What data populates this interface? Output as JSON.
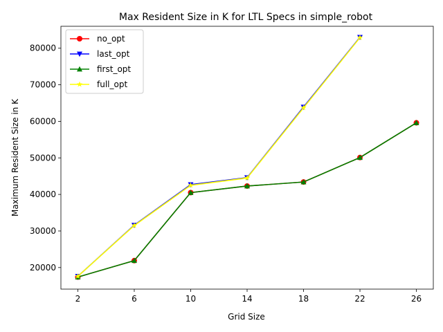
{
  "chart_data": {
    "type": "line",
    "title": "Max Resident Size in K for LTL Specs in simple_robot",
    "xlabel": "Grid Size",
    "ylabel": "Maximum Resident Size in K",
    "x_ticks": [
      2,
      6,
      10,
      14,
      18,
      22,
      26
    ],
    "y_ticks": [
      20000,
      30000,
      40000,
      50000,
      60000,
      70000,
      80000
    ],
    "xlim": [
      0.8,
      27.2
    ],
    "ylim": [
      14100,
      86000
    ],
    "grid": false,
    "legend_position": "upper-left",
    "series": [
      {
        "name": "no_opt",
        "color": "#ff0000",
        "marker": "circle",
        "x": [
          2,
          6,
          10,
          14,
          18,
          22,
          26
        ],
        "y": [
          17400,
          21900,
          40500,
          42300,
          43400,
          50100,
          59600
        ]
      },
      {
        "name": "last_opt",
        "color": "#0000ff",
        "marker": "triangle-down",
        "x": [
          2,
          6,
          10,
          14,
          18,
          22
        ],
        "y": [
          17600,
          31600,
          42700,
          44600,
          63900,
          83000
        ]
      },
      {
        "name": "first_opt",
        "color": "#008000",
        "marker": "triangle-up",
        "x": [
          2,
          6,
          10,
          14,
          18,
          22,
          26
        ],
        "y": [
          17400,
          21900,
          40500,
          42300,
          43400,
          50100,
          59600
        ]
      },
      {
        "name": "full_opt",
        "color": "#ffff00",
        "marker": "star",
        "x": [
          2,
          6,
          10,
          14,
          18,
          22
        ],
        "y": [
          17600,
          31500,
          42500,
          44500,
          63700,
          82900
        ]
      }
    ]
  }
}
